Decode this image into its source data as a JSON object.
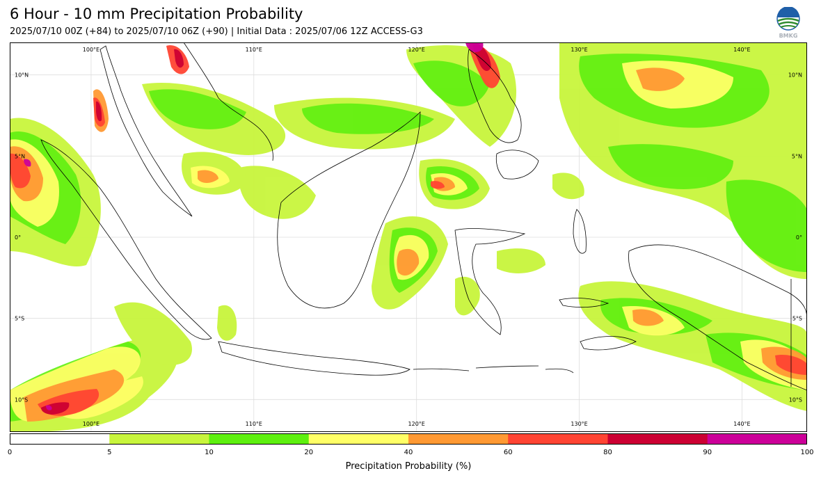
{
  "header": {
    "title": "6 Hour - 10 mm Precipitation Probability",
    "subtitle": "2025/07/10 00Z (+84) to 2025/07/10 06Z (+90) | Initial Data : 2025/07/06 12Z ACCESS-G3",
    "logo_text": "BMKG"
  },
  "map": {
    "lon_range": [
      95,
      144
    ],
    "lat_range": [
      -12,
      12
    ],
    "lon_labels": [
      "100°E",
      "110°E",
      "120°E",
      "130°E",
      "140°E"
    ],
    "lat_labels": [
      "10°N",
      "5°N",
      "0°",
      "5°S",
      "10°S"
    ],
    "colors": {
      "c5": "#c8f53c",
      "c10": "#5ef00f",
      "c20": "#ffff66",
      "c40": "#ff9933",
      "c60": "#ff4433",
      "c80": "#cc0033",
      "c90": "#cc0099"
    }
  },
  "colorbar": {
    "label": "Precipitation Probability (%)",
    "bins": [
      {
        "from": 0,
        "to": 5,
        "color": "#ffffff"
      },
      {
        "from": 5,
        "to": 10,
        "color": "#c8f53c"
      },
      {
        "from": 10,
        "to": 20,
        "color": "#5ef00f"
      },
      {
        "from": 20,
        "to": 40,
        "color": "#ffff66"
      },
      {
        "from": 40,
        "to": 60,
        "color": "#ff9933"
      },
      {
        "from": 60,
        "to": 80,
        "color": "#ff4433"
      },
      {
        "from": 80,
        "to": 90,
        "color": "#cc0033"
      },
      {
        "from": 90,
        "to": 100,
        "color": "#cc0099"
      }
    ],
    "tick_labels": [
      "0",
      "5",
      "10",
      "20",
      "40",
      "60",
      "80",
      "90",
      "100"
    ]
  }
}
